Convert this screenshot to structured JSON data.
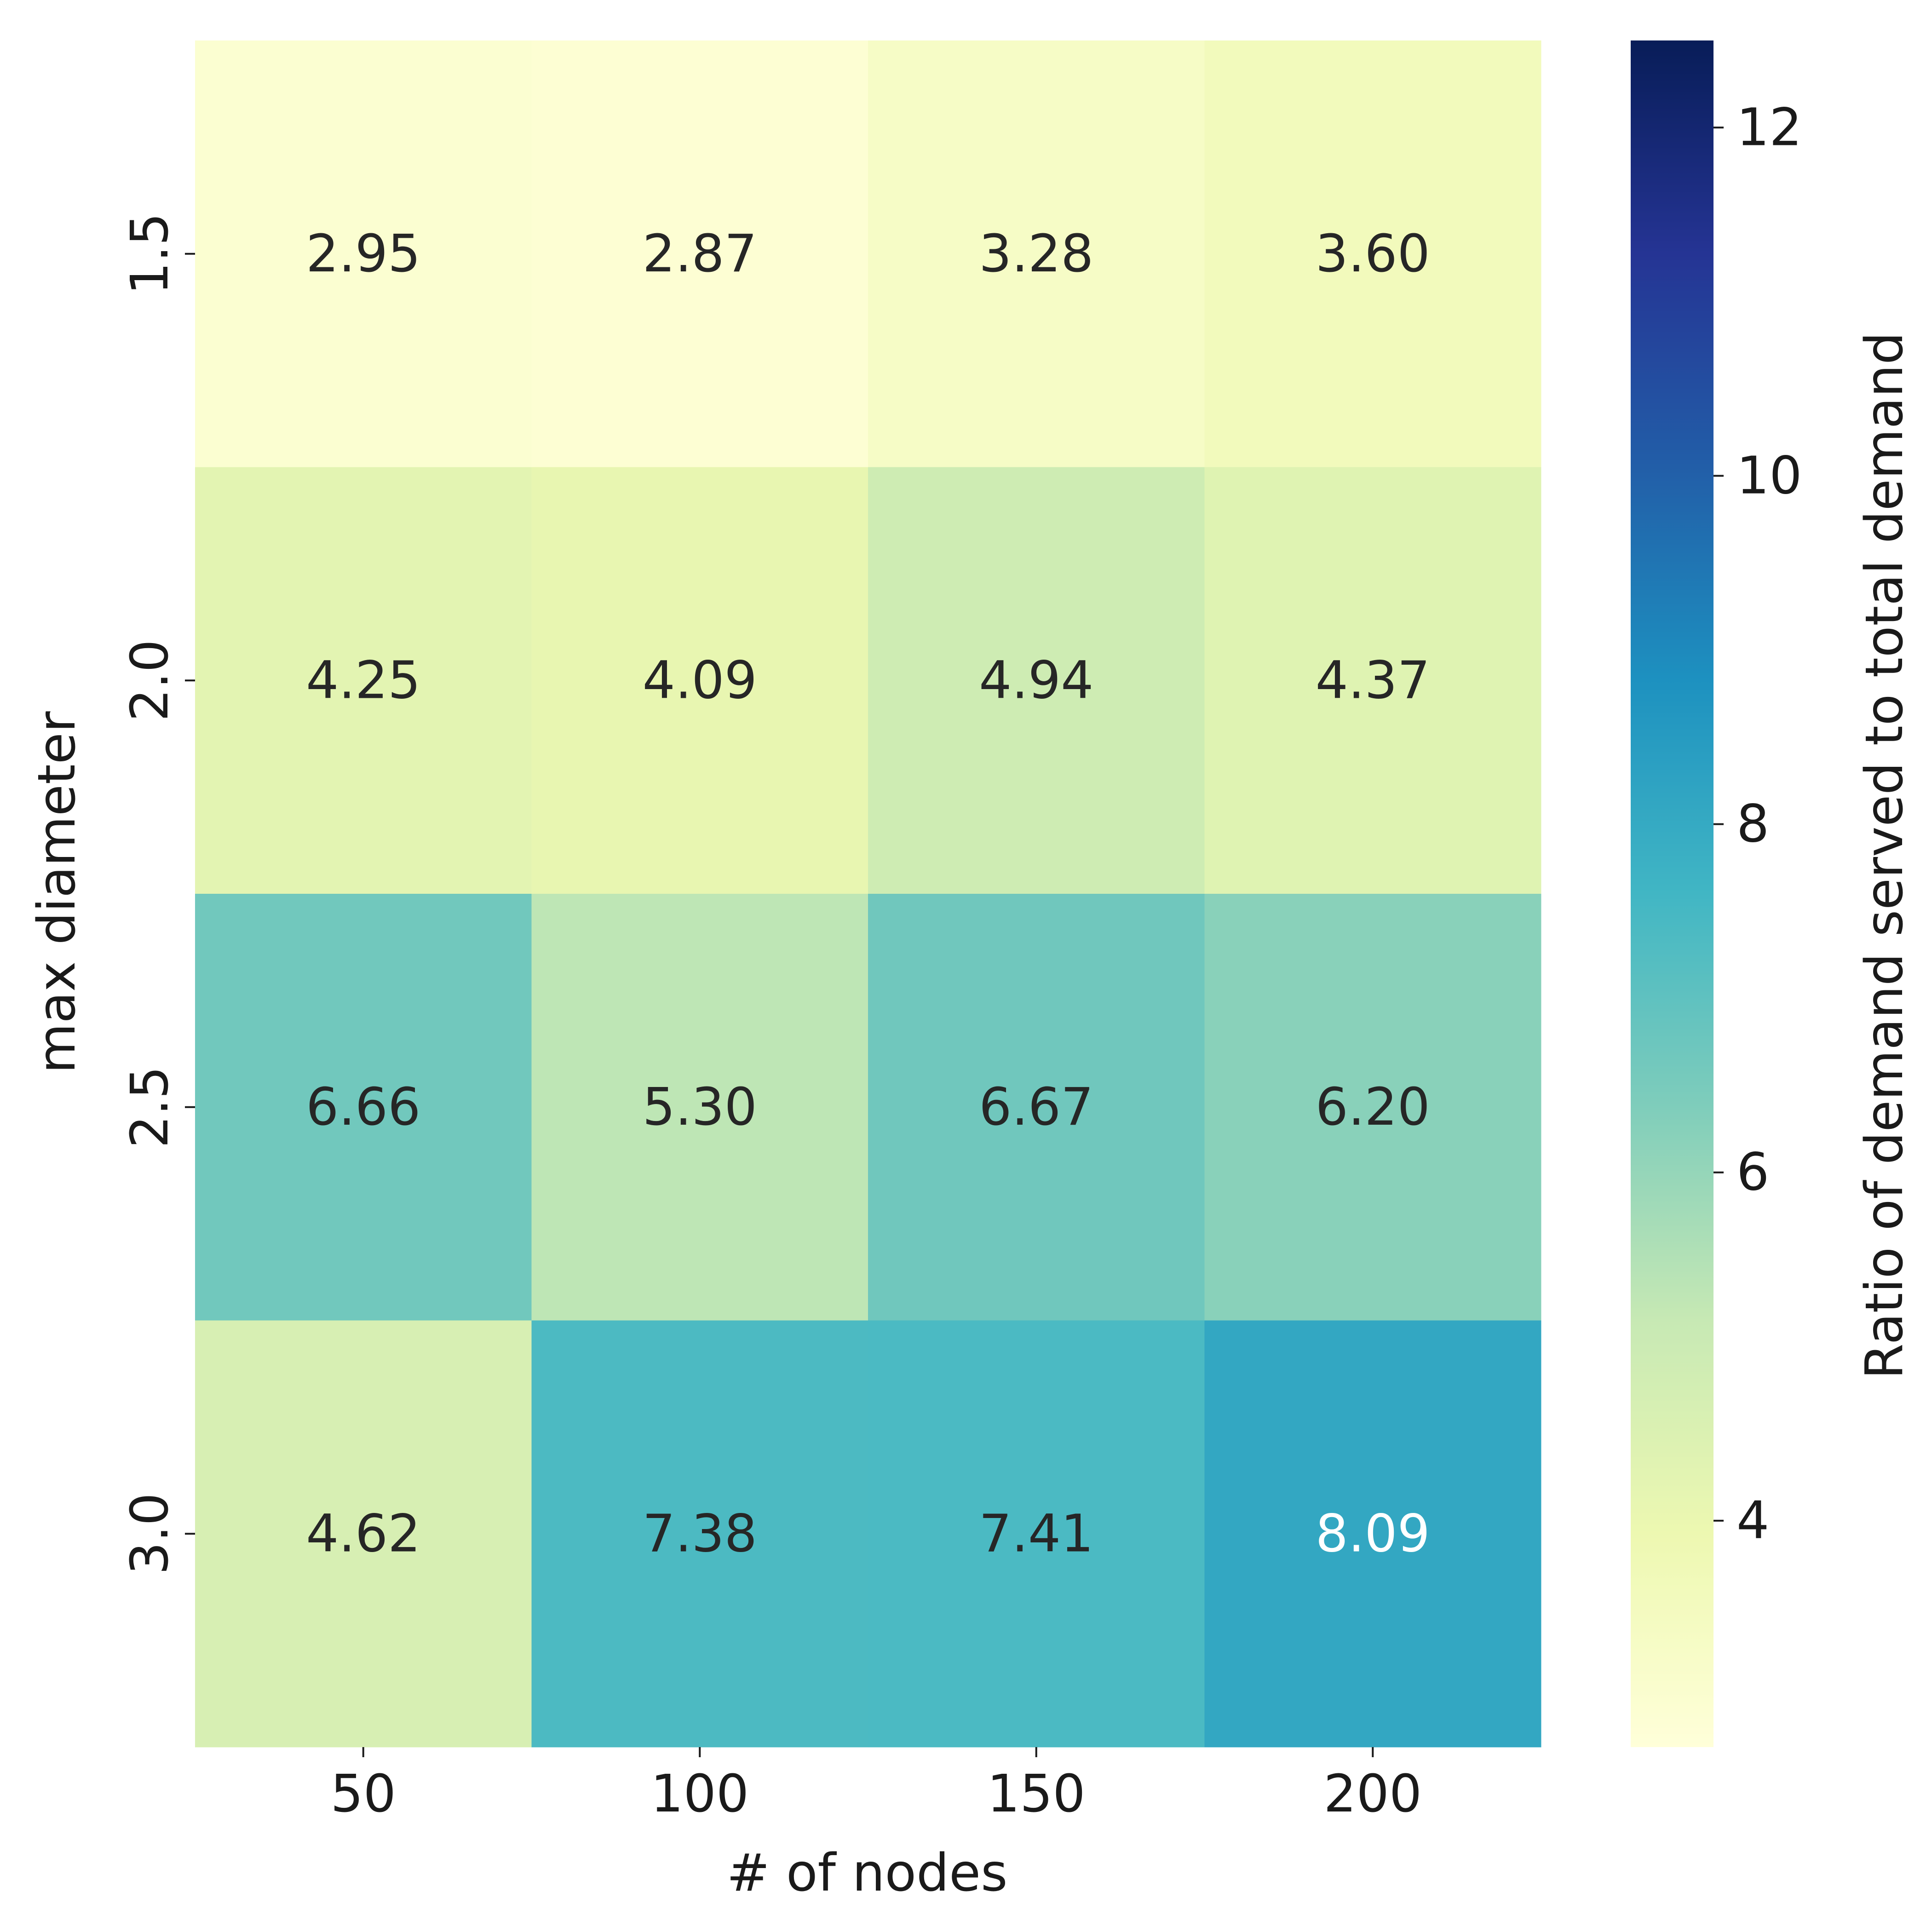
{
  "chart_data": {
    "type": "heatmap",
    "title": "",
    "xlabel": "# of nodes",
    "ylabel": "max diameter",
    "x_categories": [
      "50",
      "100",
      "150",
      "200"
    ],
    "y_categories": [
      "1.5",
      "2.0",
      "2.5",
      "3.0"
    ],
    "values": [
      [
        2.95,
        2.87,
        3.28,
        3.6
      ],
      [
        4.25,
        4.09,
        4.94,
        4.37
      ],
      [
        6.66,
        5.3,
        6.67,
        6.2
      ],
      [
        4.62,
        7.38,
        7.41,
        8.09
      ]
    ],
    "cell_labels": [
      [
        "2.95",
        "2.87",
        "3.28",
        "3.60"
      ],
      [
        "4.25",
        "4.09",
        "4.94",
        "4.37"
      ],
      [
        "6.66",
        "5.30",
        "6.67",
        "6.20"
      ],
      [
        "4.62",
        "7.38",
        "7.41",
        "8.09"
      ]
    ],
    "colorbar": {
      "label": "Ratio of demand served to total demand",
      "min": 2.7,
      "max": 12.5,
      "ticks": [
        4,
        6,
        8,
        10,
        12
      ],
      "tick_labels": [
        "4",
        "6",
        "8",
        "10",
        "12"
      ],
      "colormap": "YlGnBu",
      "colormap_stops": [
        "#ffffd9",
        "#edf8b1",
        "#c7e9b4",
        "#7fcdbb",
        "#41b6c4",
        "#1d91c0",
        "#225ea8",
        "#253494",
        "#081d58"
      ]
    },
    "annotation_colors": {
      "dark": "#262626",
      "light": "#ffffff"
    }
  }
}
